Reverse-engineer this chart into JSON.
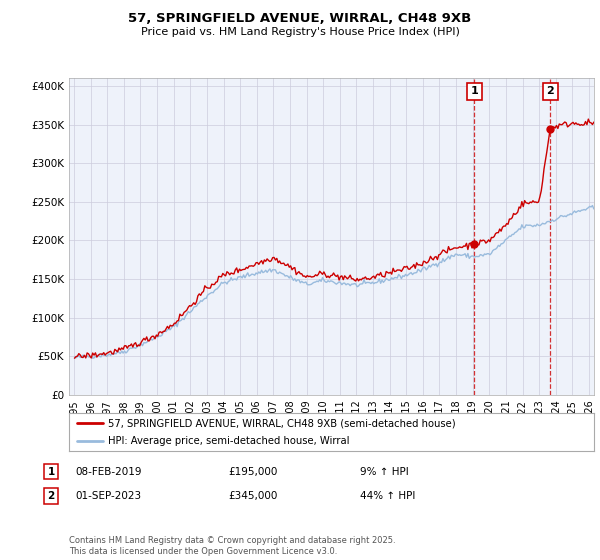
{
  "title": "57, SPRINGFIELD AVENUE, WIRRAL, CH48 9XB",
  "subtitle": "Price paid vs. HM Land Registry's House Price Index (HPI)",
  "legend_line1": "57, SPRINGFIELD AVENUE, WIRRAL, CH48 9XB (semi-detached house)",
  "legend_line2": "HPI: Average price, semi-detached house, Wirral",
  "annotation1_label": "1",
  "annotation1_date": "08-FEB-2019",
  "annotation1_price": "£195,000",
  "annotation1_hpi": "9% ↑ HPI",
  "annotation2_label": "2",
  "annotation2_date": "01-SEP-2023",
  "annotation2_price": "£345,000",
  "annotation2_hpi": "44% ↑ HPI",
  "footnote": "Contains HM Land Registry data © Crown copyright and database right 2025.\nThis data is licensed under the Open Government Licence v3.0.",
  "line_color_property": "#cc0000",
  "line_color_hpi": "#99bbdd",
  "marker_color": "#cc0000",
  "dashed_color": "#cc0000",
  "background_color": "#ffffff",
  "grid_color": "#ccccdd",
  "plot_bg_color": "#eef2fa",
  "ylim": [
    0,
    410000
  ],
  "yticks": [
    0,
    50000,
    100000,
    150000,
    200000,
    250000,
    300000,
    350000,
    400000
  ],
  "ytick_labels": [
    "£0",
    "£50K",
    "£100K",
    "£150K",
    "£200K",
    "£250K",
    "£300K",
    "£350K",
    "£400K"
  ],
  "x_start_year": 1995,
  "x_end_year": 2026,
  "sale1_year": 2019.1,
  "sale1_price": 195000,
  "sale2_year": 2023.67,
  "sale2_price": 345000
}
